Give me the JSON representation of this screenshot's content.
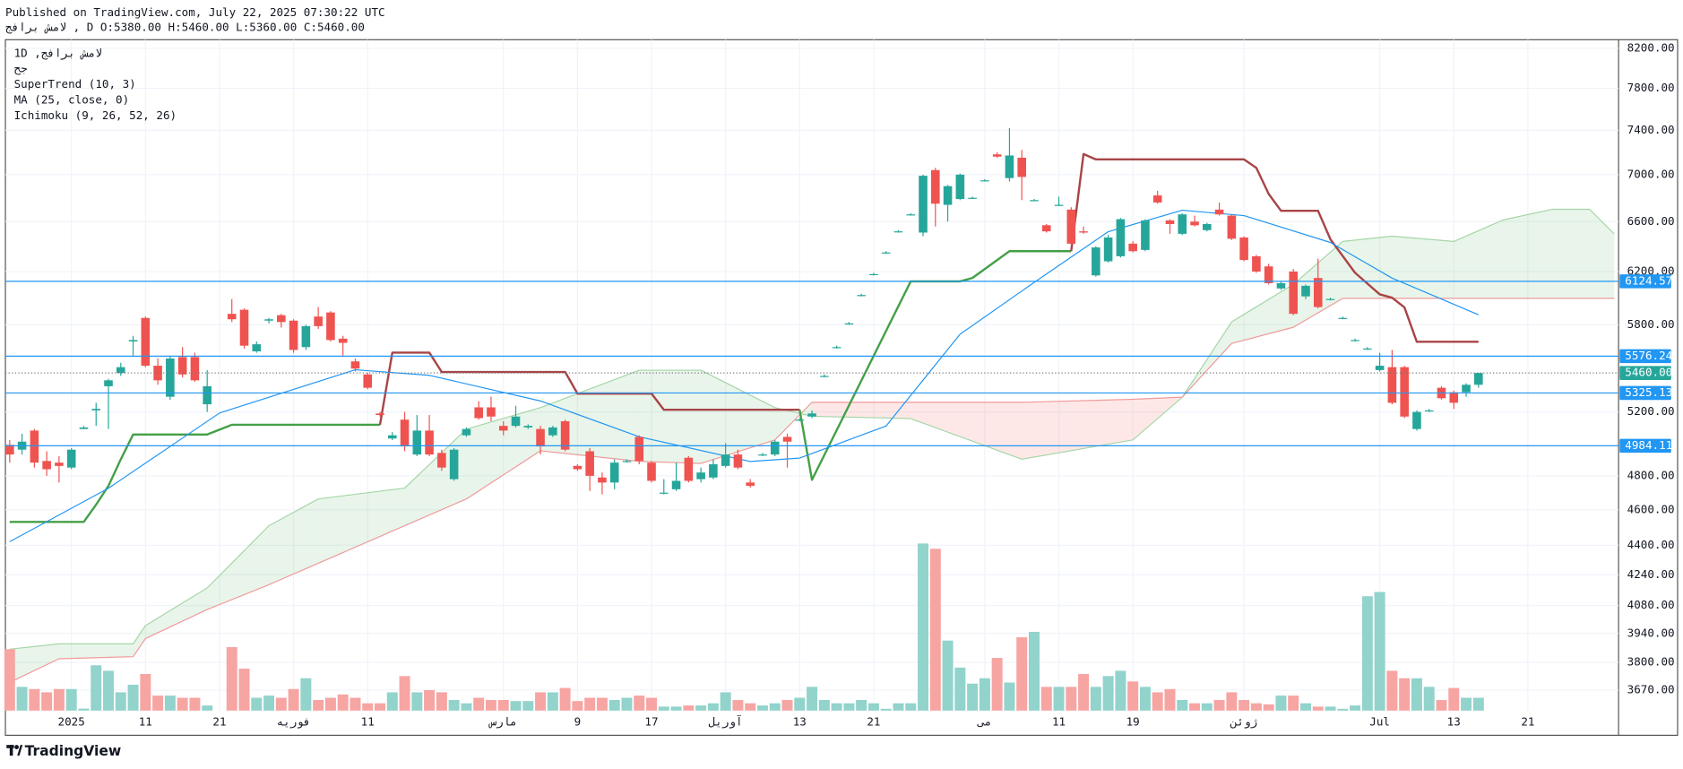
{
  "header": {
    "published": "Published on TradingView.com, July 22, 2025 07:30:22 UTC",
    "quote": "لامش برافج , D O:5380.00 H:5460.00 L:5360.00 C:5460.00"
  },
  "footer": {
    "brand": "TradingView"
  },
  "chart_data": {
    "type": "candlestick",
    "title": "1D ,لامش برافج",
    "subtitle": "جح",
    "log_scale": true,
    "grid": true,
    "ylim": [
      3577,
      8289
    ],
    "yticks": [
      {
        "value": 8200,
        "label": "8200.00"
      },
      {
        "value": 7800,
        "label": "7800.00"
      },
      {
        "value": 7400,
        "label": "7400.00"
      },
      {
        "value": 7000,
        "label": "7000.00"
      },
      {
        "value": 6600,
        "label": "6600.00"
      },
      {
        "value": 6200,
        "label": "6200.00"
      },
      {
        "value": 5800,
        "label": "5800.00"
      },
      {
        "value": 5200,
        "label": "5200.00"
      },
      {
        "value": 4800,
        "label": "4800.00"
      },
      {
        "value": 4600,
        "label": "4600.00"
      },
      {
        "value": 4400,
        "label": "4400.00"
      },
      {
        "value": 4240,
        "label": "4240.00"
      },
      {
        "value": 4080,
        "label": "4080.00"
      },
      {
        "value": 3940,
        "label": "3940.00"
      },
      {
        "value": 3800,
        "label": "3800.00"
      },
      {
        "value": 3670,
        "label": "3670.00"
      }
    ],
    "xticks": [
      {
        "value": 5,
        "label": "2025"
      },
      {
        "value": 11,
        "label": "11"
      },
      {
        "value": 17,
        "label": "21"
      },
      {
        "value": 23,
        "label": "فوريه"
      },
      {
        "value": 29,
        "label": "11"
      },
      {
        "value": 40,
        "label": "مارس"
      },
      {
        "value": 46,
        "label": "9"
      },
      {
        "value": 52,
        "label": "17"
      },
      {
        "value": 58,
        "label": "آوريل"
      },
      {
        "value": 64,
        "label": "13"
      },
      {
        "value": 70,
        "label": "21"
      },
      {
        "value": 79,
        "label": "مى"
      },
      {
        "value": 85,
        "label": "11"
      },
      {
        "value": 91,
        "label": "19"
      },
      {
        "value": 100,
        "label": "ژوئن"
      },
      {
        "value": 111,
        "label": "Jul"
      },
      {
        "value": 117,
        "label": "13"
      },
      {
        "value": 123,
        "label": "21"
      }
    ],
    "up_color": "#26a69a",
    "down_color": "#ef5350",
    "open": [
      4990,
      4960,
      5080,
      4890,
      4880,
      4850,
      5090,
      5210,
      5370,
      5460,
      5680,
      5850,
      5510,
      5300,
      5570,
      5570,
      5250,
      null,
      5880,
      5910,
      5610,
      5830,
      5870,
      5830,
      5640,
      5860,
      5890,
      5700,
      5540,
      5450,
      5190,
      5030,
      5150,
      4930,
      5080,
      4940,
      4780,
      5050,
      5230,
      5230,
      5110,
      5110,
      5100,
      5090,
      5050,
      5140,
      4860,
      4950,
      4790,
      4760,
      4890,
      5040,
      4880,
      4700,
      4720,
      4910,
      4780,
      4790,
      4860,
      4930,
      4760,
      4930,
      4930,
      5040,
      5150,
      5170,
      5440,
      5640,
      5810,
      6020,
      6180,
      6350,
      6520,
      6660,
      6510,
      7040,
      6740,
      6790,
      6800,
      6950,
      7180,
      6970,
      7150,
      6780,
      6570,
      6740,
      6700,
      6520,
      6170,
      6280,
      6320,
      6420,
      6370,
      6820,
      6610,
      6500,
      6600,
      6530,
      6700,
      6650,
      6470,
      6320,
      6240,
      6070,
      6200,
      6010,
      6150,
      5990,
      5850,
      5690,
      5630,
      5480,
      5500,
      5500,
      5090,
      5210,
      5360,
      5330,
      5330,
      5380
    ],
    "high": [
      5020,
      5060,
      5090,
      4950,
      4920,
      4970,
      5110,
      5260,
      5420,
      5530,
      5720,
      5860,
      5560,
      5580,
      5640,
      5600,
      5480,
      null,
      5990,
      5920,
      5680,
      5850,
      5880,
      5840,
      5800,
      5930,
      5900,
      5720,
      5560,
      5460,
      5200,
      5070,
      5200,
      5180,
      5180,
      4960,
      4970,
      5100,
      5270,
      5300,
      5140,
      5240,
      5120,
      5110,
      5110,
      5150,
      4870,
      4970,
      4820,
      4900,
      4900,
      5050,
      4890,
      4780,
      4880,
      4920,
      4850,
      4900,
      5000,
      4960,
      4780,
      4940,
      5020,
      5060,
      5160,
      5210,
      5450,
      5650,
      5820,
      6030,
      6190,
      6360,
      6530,
      6670,
      7000,
      7060,
      6910,
      7010,
      6810,
      6960,
      7200,
      7420,
      7220,
      6790,
      6580,
      6810,
      6720,
      6560,
      6400,
      6490,
      6630,
      6440,
      6620,
      6860,
      6620,
      6670,
      6650,
      6590,
      6760,
      6660,
      6480,
      6330,
      6260,
      6120,
      6220,
      6100,
      6300,
      6000,
      5860,
      5700,
      5640,
      5600,
      5620,
      5510,
      5210,
      5220,
      5370,
      5340,
      5390,
      5460
    ],
    "low": [
      4880,
      4930,
      4850,
      4800,
      4760,
      4840,
      5090,
      5110,
      5090,
      5440,
      5580,
      5500,
      5380,
      5280,
      5430,
      5400,
      5200,
      null,
      5820,
      5630,
      5600,
      5810,
      5780,
      5600,
      5620,
      5770,
      5680,
      5580,
      5470,
      5350,
      5170,
      5020,
      4950,
      4920,
      4920,
      4830,
      4770,
      5040,
      5150,
      5140,
      5050,
      5100,
      5090,
      4930,
      5040,
      4950,
      4830,
      4710,
      4690,
      4720,
      4880,
      4870,
      4760,
      4690,
      4710,
      4760,
      4760,
      4780,
      4850,
      4840,
      4730,
      4920,
      4920,
      4850,
      5140,
      5160,
      5430,
      5630,
      5800,
      6010,
      6170,
      6340,
      6510,
      6650,
      6480,
      6560,
      6600,
      6780,
      6790,
      6940,
      7150,
      6940,
      6780,
      6770,
      6510,
      6730,
      6410,
      6500,
      6160,
      6270,
      6310,
      6350,
      6360,
      6750,
      6500,
      6490,
      6560,
      6520,
      6650,
      6450,
      6280,
      6190,
      6100,
      6060,
      5870,
      5990,
      5920,
      5980,
      5840,
      5680,
      5620,
      5470,
      5250,
      5160,
      5080,
      5200,
      5280,
      5220,
      5300,
      5360
    ],
    "close": [
      4930,
      5010,
      4880,
      4840,
      4860,
      4960,
      5100,
      5220,
      5410,
      5500,
      5690,
      5510,
      5410,
      5560,
      5450,
      5410,
      5370,
      null,
      5840,
      5650,
      5660,
      5840,
      5820,
      5620,
      5790,
      5790,
      5690,
      5670,
      5490,
      5360,
      5180,
      5050,
      4980,
      5080,
      4930,
      4850,
      4960,
      5090,
      5160,
      5170,
      5080,
      5170,
      5110,
      4980,
      5100,
      4960,
      4840,
      4800,
      4760,
      4880,
      4890,
      4890,
      4770,
      4700,
      4770,
      4770,
      4820,
      4870,
      4930,
      4850,
      4740,
      4930,
      5010,
      5010,
      5150,
      5190,
      5440,
      5640,
      5810,
      6020,
      6180,
      6350,
      6520,
      6660,
      6990,
      6750,
      6900,
      7000,
      6800,
      6950,
      7160,
      7170,
      6980,
      6780,
      6520,
      6740,
      6420,
      6510,
      6390,
      6470,
      6620,
      6360,
      6610,
      6760,
      6580,
      6660,
      6570,
      6580,
      6660,
      6460,
      6290,
      6200,
      6110,
      6110,
      5880,
      6090,
      5930,
      5990,
      5850,
      5690,
      5630,
      5510,
      5260,
      5170,
      5200,
      5210,
      5290,
      5260,
      5380,
      5460
    ],
    "volume": {
      "up_color": "#92d3cc",
      "down_color": "#f6a5a3",
      "values": [
        3863,
        3685,
        3675,
        3660,
        3675,
        3675,
        3586,
        3786,
        3760,
        3660,
        3695,
        3745,
        3645,
        3645,
        3635,
        3635,
        3600,
        null,
        3873,
        3770,
        3635,
        3645,
        3635,
        3675,
        3725,
        3625,
        3635,
        3650,
        3635,
        3610,
        3610,
        3660,
        3735,
        3660,
        3670,
        3660,
        3625,
        3610,
        3635,
        3625,
        3625,
        3620,
        3620,
        3660,
        3660,
        3680,
        3620,
        3635,
        3635,
        3625,
        3635,
        3645,
        3635,
        3595,
        3595,
        3600,
        3600,
        3610,
        3660,
        3625,
        3610,
        3600,
        3610,
        3625,
        3635,
        3685,
        3625,
        3610,
        3610,
        3625,
        3610,
        3585,
        3610,
        3610,
        4410,
        4381,
        3905,
        3775,
        3700,
        3725,
        3821,
        3705,
        3921,
        3948,
        3685,
        3685,
        3685,
        3745,
        3685,
        3735,
        3760,
        3710,
        3685,
        3660,
        3675,
        3625,
        3610,
        3610,
        3625,
        3660,
        3625,
        3610,
        3605,
        3645,
        3645,
        3610,
        3595,
        3595,
        3585,
        3600,
        4128,
        4150,
        3760,
        3725,
        3725,
        3685,
        3625,
        3680,
        3635,
        3635
      ]
    },
    "indicators": [
      {
        "name": "SuperTrend (10, 3)",
        "segments": [
          {
            "color": "#43a047",
            "x": [
              0,
              6,
              7,
              8,
              9,
              10,
              16,
              18,
              30
            ],
            "values": [
              4531,
              4531,
              4630,
              4740,
              4900,
              5055,
              5055,
              5117,
              5117
            ]
          },
          {
            "color": "#a84446",
            "x": [
              30,
              31,
              34,
              35,
              45,
              46,
              52,
              53,
              64
            ],
            "values": [
              5117,
              5601,
              5601,
              5467,
              5467,
              5321,
              5321,
              5214,
              5214
            ]
          },
          {
            "color": "#43a047",
            "x": [
              64,
              65,
              73,
              77,
              78,
              81,
              86
            ],
            "values": [
              5214,
              4776,
              6124,
              6124,
              6150,
              6360,
              6360
            ]
          },
          {
            "color": "#a84446",
            "x": [
              86,
              87,
              88,
              100,
              101,
              102,
              103,
              106,
              107,
              109,
              111,
              112,
              113,
              114,
              119
            ],
            "values": [
              6360,
              7183,
              7135,
              7135,
              7060,
              6833,
              6690,
              6690,
              6456,
              6190,
              6025,
              6000,
              5928,
              5678,
              5678
            ]
          }
        ]
      },
      {
        "name": "MA (25, close, 0)",
        "color": "#2196f3",
        "x": [
          0,
          8,
          17,
          28,
          34,
          43,
          51,
          60,
          64,
          71,
          77,
          83,
          89,
          95,
          100,
          107,
          112,
          119
        ],
        "values": [
          4420,
          4726,
          5193,
          5482,
          5444,
          5272,
          5041,
          4887,
          4908,
          5109,
          5732,
          6116,
          6517,
          6695,
          6650,
          6430,
          6149,
          5873
        ]
      },
      {
        "name": "Ichimoku (9, 26, 52, 26)",
        "fill_up": "rgba(76,175,80,0.12)",
        "fill_down": "rgba(244,67,54,0.12)",
        "x": [
          0,
          4,
          10,
          11,
          16,
          21,
          25,
          32,
          37,
          43,
          51,
          56,
          62,
          65,
          73,
          82,
          91,
          95,
          99,
          104,
          108,
          112,
          117,
          121,
          125,
          128,
          130
        ],
        "span_a": {
          "color": "#a5d6a7",
          "values": [
            3863,
            3889,
            3889,
            3979,
            4171,
            4509,
            4663,
            4727,
            5089,
            5228,
            5479,
            5479,
            5228,
            5172,
            5157,
            4901,
            5021,
            5297,
            5821,
            6101,
            6438,
            6481,
            6438,
            6614,
            6703,
            6703,
            6499
          ]
        },
        "span_b": {
          "color": "#ef9a9a",
          "values": [
            3706,
            3817,
            3827,
            3915,
            4060,
            4188,
            4302,
            4509,
            4663,
            4953,
            4888,
            4875,
            5021,
            5263,
            5263,
            5263,
            5283,
            5297,
            5666,
            5782,
            5995,
            5995,
            5995,
            5995,
            5995,
            5995,
            5995
          ]
        }
      }
    ],
    "levels": [
      {
        "value": 6124.57,
        "color": "#2196f3"
      },
      {
        "value": 5576.24,
        "color": "#2196f3"
      },
      {
        "value": 5325.13,
        "color": "#2196f3"
      },
      {
        "value": 4984.11,
        "color": "#2196f3"
      }
    ],
    "last_price": {
      "value": 5460,
      "label": "5460.00",
      "color": "#26a69a"
    }
  }
}
